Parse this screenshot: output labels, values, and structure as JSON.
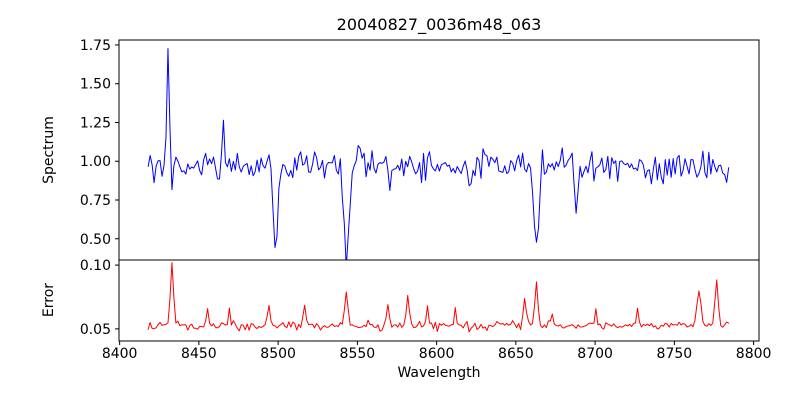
{
  "figure": {
    "background": "#ffffff",
    "axis_color": "#000000",
    "tick_label_color": "#000000"
  },
  "chart_data": [
    {
      "type": "line",
      "title": "20040827_0036m48_063",
      "ylabel": "Spectrum",
      "line_color": "#0000ff",
      "line_width": 1,
      "grid": false,
      "legend": null,
      "xlim": [
        8399.6,
        8803.4
      ],
      "ylim": [
        0.363,
        1.782
      ],
      "ytick_values": [
        0.5,
        0.75,
        1.0,
        1.25,
        1.5,
        1.75
      ],
      "ytick_labels": [
        "0.50",
        "0.75",
        "1.00",
        "1.25",
        "1.50",
        "1.75"
      ],
      "x_start": 8418,
      "x_end": 8784.25,
      "n_points": 294,
      "continuum": 0.97,
      "noise_sigma": 0.05,
      "seed": 12345,
      "features": [
        {
          "x": 8430.5,
          "amp": 0.74,
          "sigma": 0.9,
          "kind": "emission-spike",
          "peak_value": 1.72
        },
        {
          "x": 8433.0,
          "amp": -0.2,
          "sigma": 0.8,
          "kind": "absorption",
          "min_value": 0.77
        },
        {
          "x": 8465.5,
          "amp": 0.24,
          "sigma": 0.8,
          "kind": "emission",
          "peak_value": 1.21
        },
        {
          "x": 8498.0,
          "amp": -0.5,
          "sigma": 1.4,
          "kind": "absorption-CaII",
          "min_value": 0.47
        },
        {
          "x": 8543.0,
          "amp": -0.57,
          "sigma": 1.7,
          "kind": "absorption-CaII",
          "min_value": 0.4
        },
        {
          "x": 8570.5,
          "amp": -0.13,
          "sigma": 0.9,
          "kind": "absorption",
          "min_value": 0.84
        },
        {
          "x": 8620.5,
          "amp": -0.16,
          "sigma": 0.9,
          "kind": "absorption",
          "min_value": 0.81
        },
        {
          "x": 8663.0,
          "amp": -0.53,
          "sigma": 1.6,
          "kind": "absorption-CaII",
          "min_value": 0.44
        },
        {
          "x": 8688.0,
          "amp": -0.38,
          "sigma": 0.9,
          "kind": "absorption",
          "min_value": 0.59
        },
        {
          "x": 8743.0,
          "amp": -0.16,
          "sigma": 0.8,
          "kind": "absorption",
          "min_value": 0.81
        }
      ]
    },
    {
      "type": "line",
      "ylabel": "Error",
      "xlabel": "Wavelength",
      "line_color": "#ff0000",
      "line_width": 1,
      "grid": false,
      "legend": null,
      "xlim": [
        8399.6,
        8803.4
      ],
      "ylim": [
        0.0405,
        0.104
      ],
      "ytick_values": [
        0.05,
        0.1
      ],
      "ytick_labels": [
        "0.05",
        "0.10"
      ],
      "xtick_values": [
        8400,
        8450,
        8500,
        8550,
        8600,
        8650,
        8700,
        8750,
        8800
      ],
      "xtick_labels": [
        "8400",
        "8450",
        "8500",
        "8550",
        "8600",
        "8650",
        "8700",
        "8750",
        "8800"
      ],
      "x_start": 8418,
      "x_end": 8784.25,
      "n_points": 294,
      "baseline": 0.0525,
      "noise_sigma": 0.0017,
      "seed": 67890,
      "features": [
        {
          "x": 8433.0,
          "amp": 0.049,
          "sigma": 1.0,
          "kind": "error-spike",
          "peak_value": 0.101
        },
        {
          "x": 8455.5,
          "amp": 0.013,
          "sigma": 0.7,
          "kind": "error-spike",
          "peak_value": 0.066
        },
        {
          "x": 8469.25,
          "amp": 0.013,
          "sigma": 0.7,
          "kind": "error-spike",
          "peak_value": 0.066
        },
        {
          "x": 8494.25,
          "amp": 0.017,
          "sigma": 0.9,
          "kind": "error-spike",
          "peak_value": 0.07
        },
        {
          "x": 8516.75,
          "amp": 0.014,
          "sigma": 0.8,
          "kind": "error-spike",
          "peak_value": 0.067
        },
        {
          "x": 8543.0,
          "amp": 0.026,
          "sigma": 1.0,
          "kind": "error-spike",
          "peak_value": 0.079
        },
        {
          "x": 8569.25,
          "amp": 0.015,
          "sigma": 0.8,
          "kind": "error-spike",
          "peak_value": 0.068
        },
        {
          "x": 8581.75,
          "amp": 0.024,
          "sigma": 0.9,
          "kind": "error-spike",
          "peak_value": 0.077
        },
        {
          "x": 8594.25,
          "amp": 0.016,
          "sigma": 0.8,
          "kind": "error-spike",
          "peak_value": 0.069
        },
        {
          "x": 8611.75,
          "amp": 0.013,
          "sigma": 0.7,
          "kind": "error-spike",
          "peak_value": 0.066
        },
        {
          "x": 8655.5,
          "amp": 0.023,
          "sigma": 0.9,
          "kind": "error-spike",
          "peak_value": 0.076
        },
        {
          "x": 8663.0,
          "amp": 0.034,
          "sigma": 1.0,
          "kind": "error-spike",
          "peak_value": 0.087
        },
        {
          "x": 8673.0,
          "amp": 0.012,
          "sigma": 0.7,
          "kind": "error-spike",
          "peak_value": 0.065
        },
        {
          "x": 8700.5,
          "amp": 0.011,
          "sigma": 0.7,
          "kind": "error-spike",
          "peak_value": 0.064
        },
        {
          "x": 8726.75,
          "amp": 0.012,
          "sigma": 0.7,
          "kind": "error-spike",
          "peak_value": 0.065
        },
        {
          "x": 8765.5,
          "amp": 0.027,
          "sigma": 1.3,
          "kind": "error-spike",
          "peak_value": 0.08
        },
        {
          "x": 8776.75,
          "amp": 0.034,
          "sigma": 1.0,
          "kind": "error-spike",
          "peak_value": 0.087
        }
      ]
    }
  ]
}
